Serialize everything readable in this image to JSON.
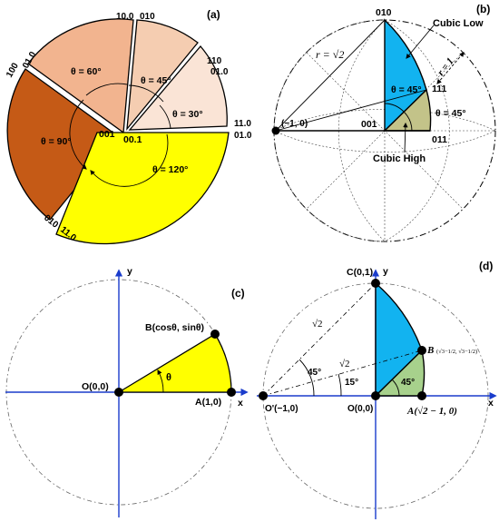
{
  "colors": {
    "wedge_60": "#f2b48f",
    "wedge_45": "#f5cdb1",
    "wedge_30": "#fae4d6",
    "wedge_90": "#c55a16",
    "wedge_120": "#ffff00",
    "cubic_low": "#12b3f0",
    "cubic_high": "#c3c389",
    "axis_blue": "#1a3ccc",
    "green_wedge": "#a7d18c"
  },
  "panel_a": {
    "tag": "(a)",
    "angles": {
      "deg60": "θ = 60°",
      "deg45": "θ = 45°",
      "deg30": "θ = 30°",
      "deg90": "θ = 90°",
      "deg120": "θ = 120°"
    },
    "labels": {
      "l10_0": "10.0",
      "l010_top": "010",
      "l110": "110",
      "l01_0_right": "01.0",
      "l11_0_right": "11.0",
      "l01_0_bottom_right": "01.0",
      "l100": "100",
      "l01_0_left": "01.0",
      "l001": "001",
      "l00_1": "00.1",
      "l010_bottom": "010",
      "l11_0_bottom": "11.0"
    }
  },
  "panel_b": {
    "tag": "(b)",
    "labels": {
      "l010": "010",
      "cubic_low": "Cubic Low",
      "r_sqrt2": "r = √2",
      "r_1": "r = 1",
      "angle_top": "θ = 45°",
      "l111": "111",
      "angle_bottom": "θ = 45°",
      "neg1_0": "(−1, 0)",
      "l001": "001",
      "l011": "011",
      "cubic_high": "Cubic High"
    }
  },
  "panel_c": {
    "tag": "(c)",
    "labels": {
      "y": "y",
      "x": "x",
      "b": "B(cosθ, sinθ)",
      "theta": "θ",
      "o": "O(0,0)",
      "a": "A(1,0)"
    }
  },
  "panel_d": {
    "tag": "(d)",
    "labels": {
      "c": "C(0,1)",
      "y": "y",
      "x": "x",
      "sqrt2_a": "√2",
      "sqrt2_b": "√2",
      "deg45_left": "45°",
      "deg15": "15°",
      "b_point": "B",
      "b_coords": "(√3−1/2, √3−1/2)",
      "deg45_green": "45°",
      "o_prime": "O'(−1,0)",
      "o": "O(0,0)",
      "a": "A(√2 − 1, 0)"
    }
  }
}
